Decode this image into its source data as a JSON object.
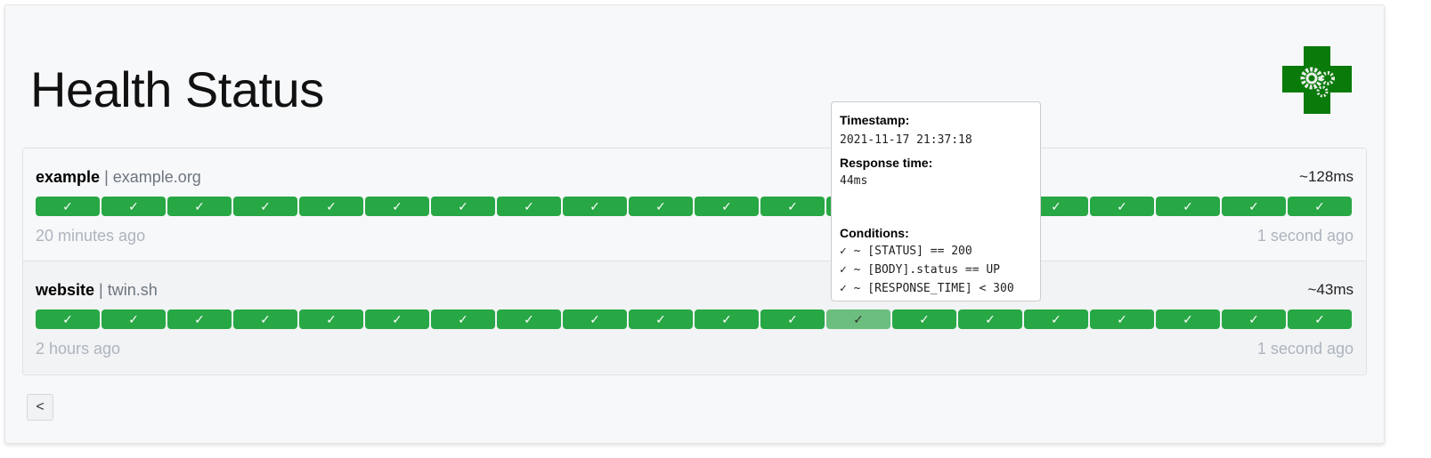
{
  "header": {
    "title": "Health Status",
    "logo_icon": "health-cross-gears-logo"
  },
  "colors": {
    "success": "#28a745",
    "logo_green": "#0a7a0a"
  },
  "services": [
    {
      "name": "example",
      "hostname": "example.org",
      "response_time": "~128ms",
      "oldest": "20 minutes ago",
      "newest": "1 second ago",
      "results": 20
    },
    {
      "name": "website",
      "hostname": "twin.sh",
      "response_time": "~43ms",
      "oldest": "2 hours ago",
      "newest": "1 second ago",
      "results": 20,
      "hovered_index": 12
    }
  ],
  "check_glyph": "✓",
  "separator": "|",
  "tooltip": {
    "timestamp_label": "Timestamp:",
    "timestamp": "2021-11-17 21:37:18",
    "response_time_label": "Response time:",
    "response_time": "44ms",
    "conditions_label": "Conditions:",
    "conditions": [
      "✓ ~ [STATUS] == 200",
      "✓ ~ [BODY].status == UP",
      "✓ ~ [RESPONSE_TIME] < 300"
    ]
  },
  "pagination": {
    "prev_label": "<"
  }
}
